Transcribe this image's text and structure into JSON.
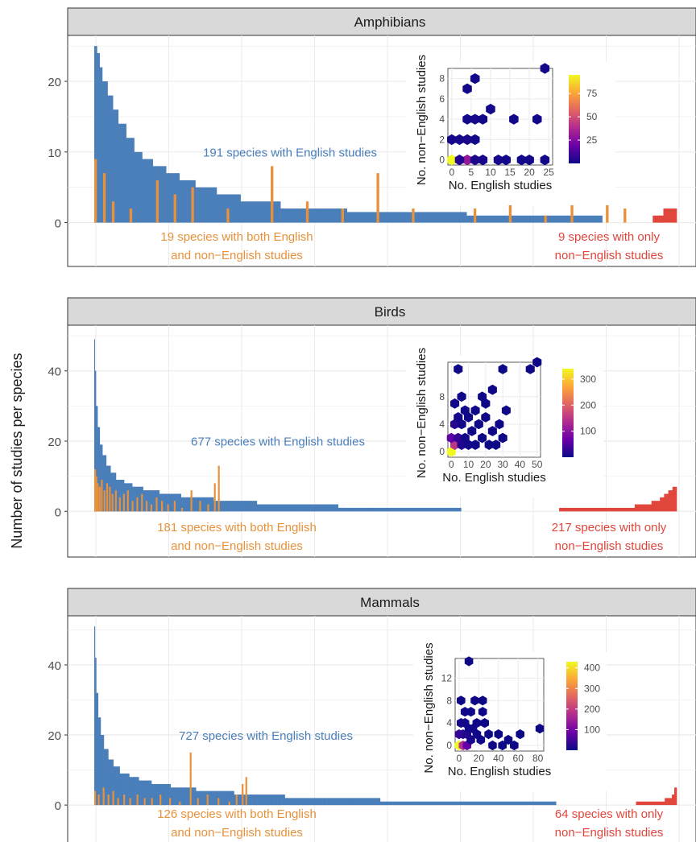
{
  "figure": {
    "y_axis_label": "Number of studies per species",
    "colors": {
      "english": "#4a7fba",
      "both": "#e8913a",
      "non_english": "#e0463c",
      "strip_bg": "#d9d9d9",
      "grid": "#ebebeb",
      "panel_border": "#333333",
      "hex_scale": [
        "#0d0887",
        "#6a00a8",
        "#b12a90",
        "#e16462",
        "#fca636",
        "#f0f921"
      ]
    }
  },
  "chart_data": [
    {
      "panel": "Amphibians",
      "type": "bar",
      "y_ticks": [
        0,
        10,
        20
      ],
      "ylim": [
        -6.2,
        26.5
      ],
      "n_english_only": 191,
      "n_both": 19,
      "n_non_english_only": 9,
      "english_profile": [
        [
          1,
          25
        ],
        [
          2,
          24
        ],
        [
          3,
          22
        ],
        [
          5,
          20
        ],
        [
          7,
          18
        ],
        [
          9,
          16
        ],
        [
          12,
          14
        ],
        [
          15,
          12
        ],
        [
          18,
          10
        ],
        [
          22,
          9
        ],
        [
          27,
          8
        ],
        [
          32,
          7
        ],
        [
          38,
          6
        ],
        [
          46,
          5
        ],
        [
          55,
          4
        ],
        [
          70,
          3
        ],
        [
          95,
          2
        ],
        [
          140,
          1.5
        ],
        [
          191,
          1
        ]
      ],
      "both_bars": [
        [
          1,
          9
        ],
        [
          2,
          7
        ],
        [
          3,
          3
        ],
        [
          5,
          2
        ],
        [
          8,
          6
        ],
        [
          10,
          4
        ],
        [
          12,
          5
        ],
        [
          16,
          2
        ],
        [
          21,
          8
        ],
        [
          25,
          3
        ],
        [
          29,
          2
        ],
        [
          33,
          7
        ],
        [
          37,
          2
        ],
        [
          44,
          2
        ],
        [
          48,
          3
        ],
        [
          52,
          1
        ],
        [
          55,
          8
        ],
        [
          59,
          3
        ],
        [
          61,
          2
        ],
        [
          65,
          1
        ]
      ],
      "non_english_bars": [
        1,
        1,
        1,
        1,
        2,
        2,
        2,
        2,
        2
      ],
      "labels": {
        "english": "191 species with English studies",
        "both_line1": "19 species with both English",
        "both_line2": "and non−English studies",
        "non_english_line1": "9 species with only",
        "non_english_line2": "non−English studies"
      },
      "inset": {
        "type": "heatmap",
        "x_label": "No. English studies",
        "y_label": "No. non−English studies",
        "x_ticks": [
          0,
          5,
          10,
          15,
          20,
          25
        ],
        "y_ticks": [
          0,
          2,
          4,
          6,
          8
        ],
        "xlim": [
          -1,
          26
        ],
        "ylim": [
          -0.5,
          9
        ],
        "legend_ticks": [
          25,
          50,
          75
        ],
        "legend_max": 95,
        "hexes": [
          [
            0,
            0,
            95
          ],
          [
            4,
            0,
            30
          ],
          [
            2,
            0,
            5
          ],
          [
            6,
            0,
            3
          ],
          [
            8,
            0,
            2
          ],
          [
            12,
            0,
            2
          ],
          [
            14,
            0,
            1
          ],
          [
            18,
            0,
            1
          ],
          [
            20,
            0,
            1
          ],
          [
            24,
            0,
            1
          ],
          [
            0,
            2,
            2
          ],
          [
            2,
            2,
            2
          ],
          [
            4,
            2,
            3
          ],
          [
            6,
            2,
            1
          ],
          [
            4,
            4,
            1
          ],
          [
            6,
            4,
            2
          ],
          [
            8,
            4,
            1
          ],
          [
            10,
            5,
            1
          ],
          [
            4,
            7,
            1
          ],
          [
            6,
            8,
            1
          ],
          [
            16,
            4,
            1
          ],
          [
            22,
            4,
            1
          ],
          [
            24,
            9,
            1
          ]
        ]
      }
    },
    {
      "panel": "Birds",
      "type": "bar",
      "y_ticks": [
        0,
        20,
        40
      ],
      "ylim": [
        -13,
        53
      ],
      "n_english_only": 677,
      "n_both": 181,
      "n_non_english_only": 217,
      "english_profile": [
        [
          1,
          49
        ],
        [
          3,
          40
        ],
        [
          6,
          30
        ],
        [
          10,
          24
        ],
        [
          15,
          19
        ],
        [
          22,
          16
        ],
        [
          30,
          13
        ],
        [
          40,
          11
        ],
        [
          55,
          9
        ],
        [
          70,
          8
        ],
        [
          90,
          7
        ],
        [
          120,
          6
        ],
        [
          160,
          5
        ],
        [
          220,
          4
        ],
        [
          300,
          3
        ],
        [
          450,
          2
        ],
        [
          677,
          1
        ]
      ],
      "both_bars": [
        [
          1,
          12
        ],
        [
          3,
          10
        ],
        [
          5,
          8
        ],
        [
          8,
          7
        ],
        [
          11,
          9
        ],
        [
          15,
          6
        ],
        [
          19,
          8
        ],
        [
          23,
          7
        ],
        [
          27,
          5
        ],
        [
          32,
          6
        ],
        [
          38,
          4
        ],
        [
          44,
          5
        ],
        [
          50,
          6
        ],
        [
          57,
          3
        ],
        [
          64,
          4
        ],
        [
          71,
          5
        ],
        [
          78,
          3
        ],
        [
          85,
          2
        ],
        [
          93,
          4
        ],
        [
          101,
          3
        ],
        [
          110,
          2
        ],
        [
          120,
          3
        ],
        [
          131,
          1
        ],
        [
          145,
          6
        ],
        [
          158,
          3
        ],
        [
          170,
          2
        ],
        [
          180,
          8
        ],
        [
          186,
          13
        ]
      ],
      "non_english_bars": [
        1,
        1,
        1,
        1,
        1,
        1,
        1,
        1,
        1,
        1,
        1,
        1,
        1,
        1,
        1,
        1,
        1,
        1,
        2,
        2,
        2,
        2,
        3,
        3,
        4,
        5,
        6,
        7
      ],
      "labels": {
        "english": "677 species with English studies",
        "both_line1": "181 species with both English",
        "both_line2": "and non−English studies",
        "non_english_line1": "217 species with only",
        "non_english_line2": "non−English studies"
      },
      "inset": {
        "type": "heatmap",
        "x_label": "No. English studies",
        "y_label": "No. non−English studies",
        "x_ticks": [
          0,
          10,
          20,
          30,
          40,
          50
        ],
        "y_ticks": [
          0,
          4,
          8
        ],
        "xlim": [
          -2,
          52
        ],
        "ylim": [
          -0.8,
          13
        ],
        "legend_ticks": [
          100,
          200,
          300
        ],
        "legend_max": 340,
        "hexes": [
          [
            0,
            0,
            340
          ],
          [
            2,
            1,
            150
          ],
          [
            0,
            2,
            60
          ],
          [
            4,
            2,
            30
          ],
          [
            2,
            4,
            20
          ],
          [
            6,
            1,
            15
          ],
          [
            8,
            2,
            6
          ],
          [
            4,
            5,
            5
          ],
          [
            6,
            4,
            4
          ],
          [
            10,
            1,
            4
          ],
          [
            12,
            3,
            3
          ],
          [
            8,
            6,
            3
          ],
          [
            14,
            1,
            2
          ],
          [
            10,
            5,
            2
          ],
          [
            16,
            4,
            2
          ],
          [
            2,
            7,
            2
          ],
          [
            6,
            8,
            2
          ],
          [
            18,
            2,
            1
          ],
          [
            20,
            5,
            1
          ],
          [
            22,
            1,
            1
          ],
          [
            24,
            3,
            1
          ],
          [
            14,
            6,
            1
          ],
          [
            18,
            8,
            1
          ],
          [
            26,
            1,
            1
          ],
          [
            30,
            2,
            1
          ],
          [
            28,
            4,
            1
          ],
          [
            20,
            7,
            1
          ],
          [
            24,
            9,
            1
          ],
          [
            4,
            12,
            1
          ],
          [
            30,
            12,
            1
          ],
          [
            46,
            12,
            1
          ],
          [
            50,
            13,
            1
          ],
          [
            32,
            6,
            1
          ]
        ]
      }
    },
    {
      "panel": "Mammals",
      "type": "bar",
      "y_ticks": [
        0,
        20,
        40
      ],
      "ylim": [
        -11,
        54
      ],
      "n_english_only": 727,
      "n_both": 126,
      "n_non_english_only": 64,
      "english_profile": [
        [
          1,
          51
        ],
        [
          3,
          42
        ],
        [
          6,
          32
        ],
        [
          10,
          25
        ],
        [
          15,
          20
        ],
        [
          22,
          16
        ],
        [
          30,
          13
        ],
        [
          40,
          11
        ],
        [
          55,
          9
        ],
        [
          70,
          8
        ],
        [
          90,
          7
        ],
        [
          120,
          6
        ],
        [
          160,
          5
        ],
        [
          220,
          4
        ],
        [
          300,
          3
        ],
        [
          450,
          2
        ],
        [
          727,
          1
        ]
      ],
      "both_bars": [
        [
          1,
          4
        ],
        [
          4,
          3
        ],
        [
          8,
          5
        ],
        [
          12,
          3
        ],
        [
          16,
          4
        ],
        [
          20,
          2
        ],
        [
          25,
          3
        ],
        [
          30,
          2
        ],
        [
          36,
          3
        ],
        [
          42,
          2
        ],
        [
          48,
          2
        ],
        [
          55,
          3
        ],
        [
          63,
          2
        ],
        [
          71,
          1
        ],
        [
          80,
          15
        ],
        [
          86,
          2
        ],
        [
          94,
          3
        ],
        [
          103,
          2
        ],
        [
          112,
          1
        ],
        [
          118,
          3
        ],
        [
          123,
          6
        ],
        [
          126,
          8
        ]
      ],
      "non_english_bars": [
        1,
        1,
        1,
        1,
        1,
        1,
        1,
        1,
        1,
        1,
        1,
        1,
        2,
        2,
        2,
        3,
        5
      ],
      "labels": {
        "english": "727 species with English studies",
        "both_line1": "126 species with both English",
        "both_line2": "and non−English studies",
        "non_english_line1": "64 species with only",
        "non_english_line2": "non−English studies"
      },
      "inset": {
        "type": "heatmap",
        "x_label": "No. English studies",
        "y_label": "No. non−English studies",
        "x_ticks": [
          0,
          20,
          40,
          60,
          80
        ],
        "y_ticks": [
          0,
          4,
          8,
          12
        ],
        "xlim": [
          -4,
          86
        ],
        "ylim": [
          -1,
          15.5
        ],
        "legend_ticks": [
          100,
          200,
          300,
          400
        ],
        "legend_max": 430,
        "hexes": [
          [
            0,
            0,
            430
          ],
          [
            4,
            0,
            180
          ],
          [
            8,
            0,
            80
          ],
          [
            0,
            2,
            40
          ],
          [
            4,
            2,
            30
          ],
          [
            8,
            2,
            20
          ],
          [
            12,
            1,
            10
          ],
          [
            2,
            4,
            8
          ],
          [
            6,
            4,
            6
          ],
          [
            10,
            3,
            5
          ],
          [
            14,
            3,
            4
          ],
          [
            18,
            2,
            3
          ],
          [
            22,
            1,
            3
          ],
          [
            6,
            6,
            2
          ],
          [
            12,
            6,
            2
          ],
          [
            18,
            4,
            2
          ],
          [
            2,
            8,
            1
          ],
          [
            16,
            8,
            1
          ],
          [
            24,
            8,
            1
          ],
          [
            26,
            4,
            1
          ],
          [
            30,
            2,
            1
          ],
          [
            34,
            0,
            1
          ],
          [
            40,
            2,
            1
          ],
          [
            44,
            0,
            1
          ],
          [
            50,
            1,
            1
          ],
          [
            56,
            0,
            1
          ],
          [
            62,
            2,
            1
          ],
          [
            82,
            3,
            1
          ],
          [
            10,
            15,
            1
          ],
          [
            24,
            6,
            1
          ]
        ]
      }
    }
  ]
}
